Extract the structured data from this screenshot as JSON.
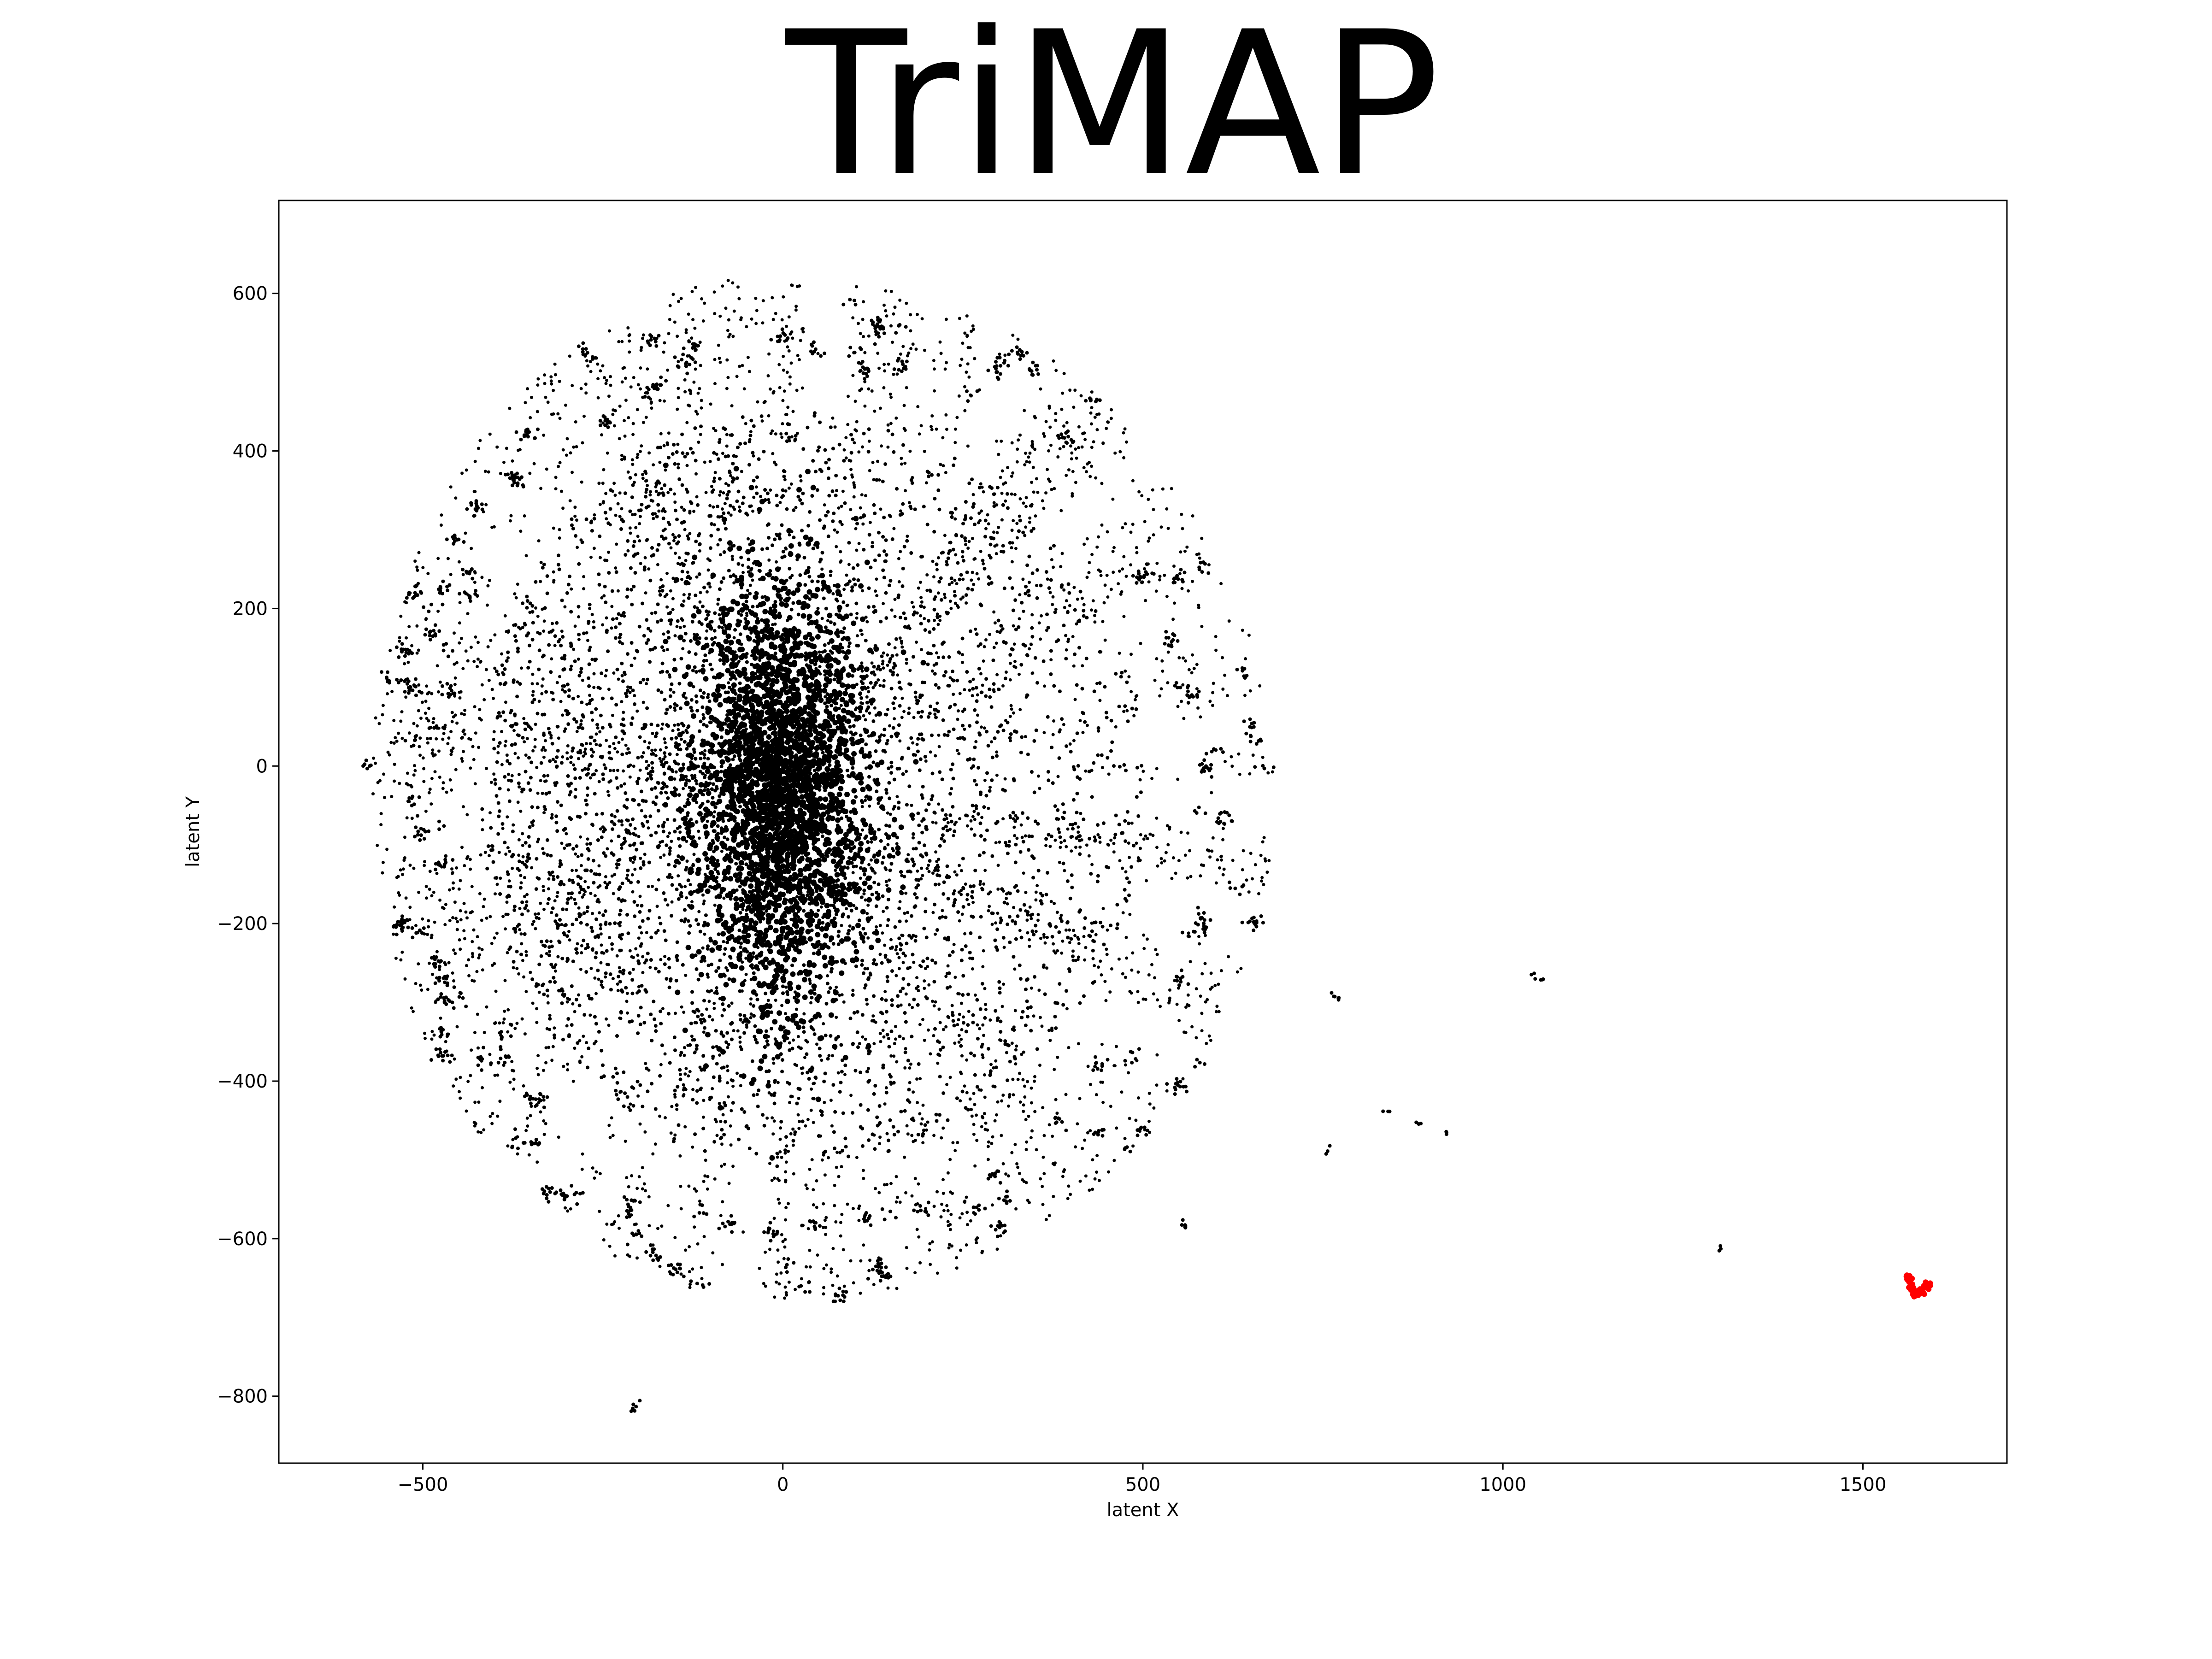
{
  "chart_data": {
    "type": "scatter",
    "title": "TriMAP",
    "xlabel": "latent X",
    "ylabel": "latent Y",
    "xlim": [
      -700,
      1700
    ],
    "ylim": [
      -885,
      718
    ],
    "xticks": [
      -500,
      0,
      500,
      1000,
      1500
    ],
    "yticks": [
      -800,
      -600,
      -400,
      -200,
      0,
      200,
      400,
      600
    ],
    "xtick_labels": [
      "−500",
      "0",
      "500",
      "1000",
      "1500"
    ],
    "ytick_labels": [
      "−800",
      "−600",
      "−400",
      "−200",
      "0",
      "200",
      "400",
      "600"
    ],
    "grid": false,
    "legend": "none",
    "series": [
      {
        "color": "#000000",
        "description_points": "dense radial cloud of points",
        "cluster": {
          "center": [
            0,
            -30
          ],
          "x_range": [
            -590,
            710
          ],
          "y_range": [
            -680,
            645
          ]
        },
        "outliers": [
          [
            -205,
            -810
          ],
          [
            -210,
            -815
          ],
          [
            555,
            -580
          ],
          [
            560,
            -585
          ],
          [
            765,
            -290
          ],
          [
            770,
            -295
          ],
          [
            755,
            -485
          ],
          [
            1045,
            -265
          ],
          [
            1055,
            -270
          ],
          [
            1305,
            -615
          ],
          [
            840,
            -440
          ],
          [
            880,
            -455
          ],
          [
            920,
            -465
          ],
          [
            -575,
            0
          ],
          [
            -580,
            5
          ]
        ]
      },
      {
        "color": "#ff0000",
        "cluster": {
          "center": [
            1575,
            -655
          ],
          "x_range": [
            1555,
            1595
          ],
          "y_range": [
            -670,
            -640
          ]
        }
      }
    ]
  }
}
